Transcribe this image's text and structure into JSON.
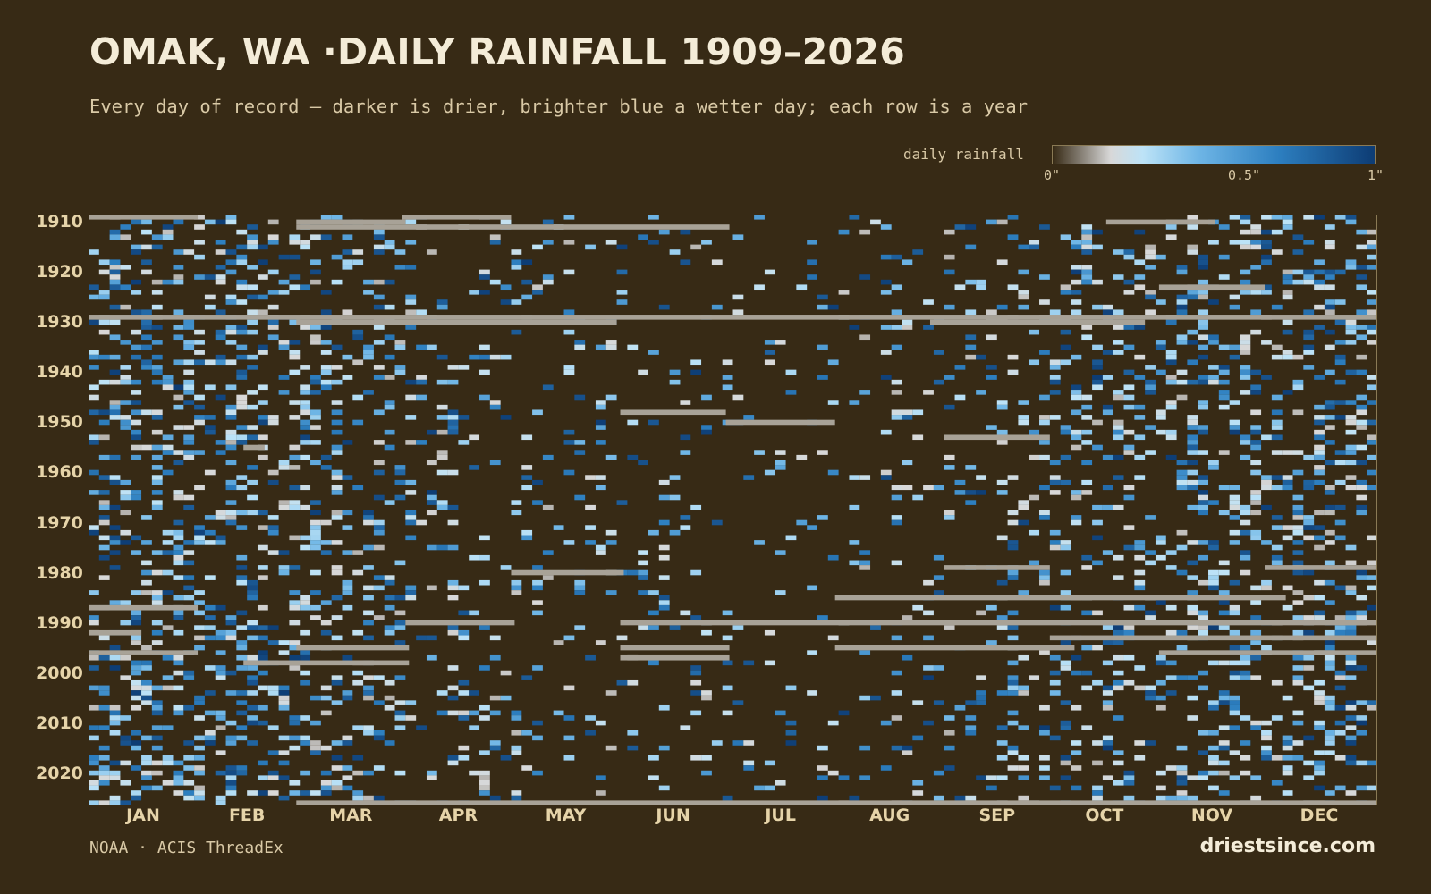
{
  "header": {
    "title": "OMAK, WA ·DAILY RAINFALL 1909–2026",
    "subtitle": "Every day of record — darker is drier, brighter blue a wetter day; each row is a year"
  },
  "legend": {
    "label": "daily rainfall",
    "ticks": [
      {
        "value": 0,
        "label": "0\""
      },
      {
        "value": 0.5,
        "label": "0.5\""
      },
      {
        "value": 1,
        "label": "1\""
      }
    ],
    "colors": [
      "#372a15",
      "#d8d8d8",
      "#bde3f7",
      "#6fb6e6",
      "#2d7fc0",
      "#0d3c74"
    ]
  },
  "footer": {
    "source": "NOAA · ACIS ThreadEx",
    "brand": "driestsince.com"
  },
  "colors": {
    "background": "#372a15",
    "missing": "#a8a297",
    "frame": "#8a7a55"
  },
  "chart_data": {
    "type": "heatmap",
    "title": "OMAK, WA ·DAILY RAINFALL 1909–2026",
    "x_labels": [
      "JAN",
      "FEB",
      "MAR",
      "APR",
      "MAY",
      "JUN",
      "JUL",
      "AUG",
      "SEP",
      "OCT",
      "NOV",
      "DEC"
    ],
    "y_labels": [
      "1910",
      "1920",
      "1930",
      "1940",
      "1950",
      "1960",
      "1970",
      "1980",
      "1990",
      "2000",
      "2010",
      "2020"
    ],
    "year_range": [
      1909,
      2026
    ],
    "day_range": [
      1,
      366
    ],
    "value_range": [
      0,
      1
    ],
    "value_unit": "inches",
    "missing_segments": [
      {
        "year": 1909,
        "days": [
          1,
          31
        ]
      },
      {
        "year": 1909,
        "days": [
          90,
          120
        ]
      },
      {
        "year": 1910,
        "days": [
          60,
          90
        ]
      },
      {
        "year": 1910,
        "days": [
          290,
          320
        ]
      },
      {
        "year": 1911,
        "days": [
          60,
          182
        ]
      },
      {
        "year": 1923,
        "days": [
          305,
          334
        ]
      },
      {
        "year": 1929,
        "days": [
          1,
          366
        ]
      },
      {
        "year": 1930,
        "days": [
          60,
          150
        ]
      },
      {
        "year": 1930,
        "days": [
          240,
          300
        ]
      },
      {
        "year": 1948,
        "days": [
          152,
          181
        ]
      },
      {
        "year": 1950,
        "days": [
          182,
          212
        ]
      },
      {
        "year": 1953,
        "days": [
          244,
          273
        ]
      },
      {
        "year": 1955,
        "days": [
          45,
          50
        ]
      },
      {
        "year": 1979,
        "days": [
          244,
          273
        ]
      },
      {
        "year": 1979,
        "days": [
          335,
          366
        ]
      },
      {
        "year": 1980,
        "days": [
          121,
          152
        ]
      },
      {
        "year": 1985,
        "days": [
          213,
          340
        ]
      },
      {
        "year": 1987,
        "days": [
          1,
          31
        ]
      },
      {
        "year": 1990,
        "days": [
          91,
          121
        ]
      },
      {
        "year": 1990,
        "days": [
          152,
          366
        ]
      },
      {
        "year": 1992,
        "days": [
          1,
          15
        ]
      },
      {
        "year": 1993,
        "days": [
          274,
          366
        ]
      },
      {
        "year": 1995,
        "days": [
          60,
          91
        ]
      },
      {
        "year": 1995,
        "days": [
          152,
          182
        ]
      },
      {
        "year": 1995,
        "days": [
          213,
          280
        ]
      },
      {
        "year": 1996,
        "days": [
          1,
          31
        ]
      },
      {
        "year": 1996,
        "days": [
          305,
          366
        ]
      },
      {
        "year": 1997,
        "days": [
          152,
          182
        ]
      },
      {
        "year": 1998,
        "days": [
          45,
          91
        ]
      },
      {
        "year": 2026,
        "days": [
          60,
          366
        ]
      }
    ]
  }
}
